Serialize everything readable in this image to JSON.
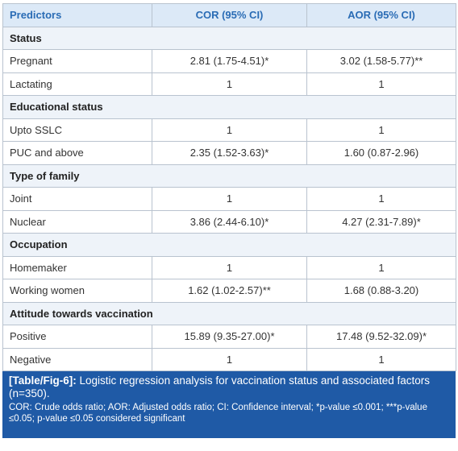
{
  "table": {
    "header": [
      "Predictors",
      "COR (95% CI)",
      "AOR (95% CI)"
    ],
    "sections": [
      {
        "title": "Status",
        "rows": [
          [
            "Pregnant",
            "2.81 (1.75-4.51)*",
            "3.02 (1.58-5.77)**"
          ],
          [
            "Lactating",
            "1",
            "1"
          ]
        ]
      },
      {
        "title": "Educational status",
        "rows": [
          [
            "Upto SSLC",
            "1",
            "1"
          ],
          [
            "PUC and above",
            "2.35 (1.52-3.63)*",
            "1.60 (0.87-2.96)"
          ]
        ]
      },
      {
        "title": "Type of family",
        "rows": [
          [
            "Joint",
            "1",
            "1"
          ],
          [
            "Nuclear",
            "3.86 (2.44-6.10)*",
            "4.27 (2.31-7.89)*"
          ]
        ]
      },
      {
        "title": "Occupation",
        "rows": [
          [
            "Homemaker",
            "1",
            "1"
          ],
          [
            "Working women",
            "1.62 (1.02-2.57)**",
            "1.68 (0.88-3.20)"
          ]
        ]
      },
      {
        "title": "Attitude towards vaccination",
        "rows": [
          [
            "Positive",
            "15.89 (9.35-27.00)*",
            "17.48 (9.52-32.09)*"
          ],
          [
            "Negative",
            "1",
            "1"
          ]
        ]
      }
    ]
  },
  "caption": {
    "label": "[Table/Fig-6]:",
    "text": "Logistic regression analysis for vaccination status and associated factors (n=350).",
    "note": "COR: Crude odds ratio; AOR: Adjusted odds ratio; CI: Confidence interval; *p-value ≤0.001; ***p-value ≤0.05; p-value ≤0.05 considered significant"
  }
}
